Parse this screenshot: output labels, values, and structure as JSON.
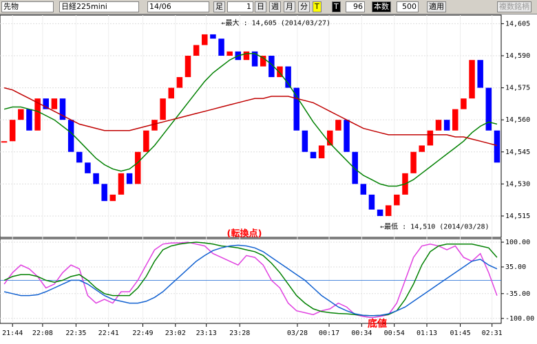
{
  "toolbar": {
    "market": "先物",
    "symbol": "日経225mini",
    "month": "14/06",
    "bar_label": "足",
    "bar_value": "1",
    "day": "日",
    "week": "週",
    "month_btn": "月",
    "minute": "分",
    "t1": "T",
    "t2": "T",
    "count": "96",
    "count_label": "本数",
    "count2": "500",
    "apply": "適用",
    "multi": "複数銘柄"
  },
  "chart_data": [
    {
      "type": "candlestick",
      "x": [
        0,
        1,
        2,
        3,
        4,
        5,
        6,
        7,
        8,
        9,
        10,
        11,
        12,
        13,
        14,
        15,
        16,
        17,
        18,
        19,
        20,
        21,
        22,
        23,
        24,
        25,
        26,
        27,
        28,
        29,
        30,
        31,
        32,
        33,
        34,
        35,
        36,
        37,
        38,
        39,
        40,
        41,
        42,
        43,
        44,
        45,
        46,
        47,
        48,
        49,
        50,
        51,
        52,
        53,
        54,
        55,
        56,
        57,
        58,
        59
      ],
      "xlim": [
        -0.5,
        59.5
      ],
      "xticks": [
        {
          "value": 1,
          "label": "21:44"
        },
        {
          "value": 4.6,
          "label": "22:08"
        },
        {
          "value": 8.6,
          "label": "22:35"
        },
        {
          "value": 12.5,
          "label": "22:41"
        },
        {
          "value": 16.6,
          "label": "22:49"
        },
        {
          "value": 20.5,
          "label": "23:02"
        },
        {
          "value": 24.2,
          "label": "23:13"
        },
        {
          "value": 28.2,
          "label": "23:28"
        },
        {
          "value": 35.1,
          "label": "03/28"
        },
        {
          "value": 38.9,
          "label": "00:17"
        },
        {
          "value": 42.8,
          "label": "00:34"
        },
        {
          "value": 46.7,
          "label": "00:54"
        },
        {
          "value": 50.6,
          "label": "01:13"
        },
        {
          "value": 54.6,
          "label": "01:45"
        },
        {
          "value": 58.4,
          "label": "02:31"
        }
      ],
      "ylim": [
        14505,
        14609
      ],
      "yticks": [
        {
          "value": 14515,
          "label": "14,515"
        },
        {
          "value": 14530,
          "label": "14,530"
        },
        {
          "value": 14545,
          "label": "14,545"
        },
        {
          "value": 14560,
          "label": "14,560"
        },
        {
          "value": 14575,
          "label": "14,575"
        },
        {
          "value": 14590,
          "label": "14,590"
        },
        {
          "value": 14605,
          "label": "14,605"
        }
      ],
      "up_color": "#ff0000",
      "down_color": "#0000ff",
      "series": [
        {
          "values": [
            14550,
            14560,
            14565,
            14555,
            14570,
            14565,
            14570,
            14560,
            14545,
            14540,
            14535,
            14530,
            14522,
            14525,
            14535,
            14530,
            14545,
            14555,
            14560,
            14570,
            14575,
            14580,
            14590,
            14595,
            14600,
            14598,
            14590,
            14592,
            14588,
            14592,
            14585,
            14590,
            14580,
            14585,
            14575,
            14555,
            14545,
            14542,
            14548,
            14555,
            14560,
            14545,
            14530,
            14525,
            14518,
            14515,
            14520,
            14525,
            14535,
            14545,
            14548,
            14555,
            14560,
            14555,
            14565,
            14570,
            14588,
            14575,
            14555,
            14540
          ]
        },
        {
          "color": "#008000",
          "values": [
            14565,
            14566,
            14566,
            14565,
            14564,
            14562,
            14560,
            14557,
            14554,
            14550,
            14546,
            14542,
            14539,
            14537,
            14536,
            14537,
            14540,
            14544,
            14548,
            14553,
            14558,
            14563,
            14568,
            14573,
            14578,
            14582,
            14585,
            14588,
            14590,
            14591,
            14591,
            14589,
            14586,
            14582,
            14577,
            14571,
            14565,
            14559,
            14554,
            14549,
            14545,
            14541,
            14537,
            14534,
            14532,
            14530,
            14529,
            14529,
            14530,
            14532,
            14535,
            14538,
            14541,
            14544,
            14547,
            14550,
            14554,
            14557,
            14559,
            14558
          ]
        },
        {
          "color": "#c00000",
          "values": [
            14575,
            14574,
            14572,
            14570,
            14568,
            14566,
            14564,
            14562,
            14560,
            14558,
            14557,
            14556,
            14555,
            14555,
            14555,
            14555,
            14556,
            14557,
            14558,
            14559,
            14560,
            14561,
            14562,
            14563,
            14564,
            14565,
            14566,
            14567,
            14568,
            14569,
            14570,
            14570,
            14571,
            14571,
            14571,
            14570,
            14569,
            14568,
            14566,
            14564,
            14562,
            14560,
            14558,
            14556,
            14555,
            14554,
            14553,
            14553,
            14553,
            14553,
            14553,
            14553,
            14553,
            14553,
            14552,
            14552,
            14551,
            14550,
            14549,
            14548
          ]
        }
      ],
      "annotations": [
        {
          "text": "←最大 : 14,605 (2014/03/27)",
          "x": 26,
          "y": 14605
        },
        {
          "text": "←最低 : 14,510 (2014/03/28)",
          "x": 45,
          "y": 14510
        }
      ]
    },
    {
      "type": "line",
      "title": "(転換点)",
      "subtitle": "底値",
      "x": [
        0,
        1,
        2,
        3,
        4,
        5,
        6,
        7,
        8,
        9,
        10,
        11,
        12,
        13,
        14,
        15,
        16,
        17,
        18,
        19,
        20,
        21,
        22,
        23,
        24,
        25,
        26,
        27,
        28,
        29,
        30,
        31,
        32,
        33,
        34,
        35,
        36,
        37,
        38,
        39,
        40,
        41,
        42,
        43,
        44,
        45,
        46,
        47,
        48,
        49,
        50,
        51,
        52,
        53,
        54,
        55,
        56,
        57,
        58,
        59
      ],
      "xlim": [
        -0.5,
        59.5
      ],
      "ylim": [
        -113,
        109
      ],
      "yticks": [
        {
          "value": 100,
          "label": "100.00"
        },
        {
          "value": 35,
          "label": "35.00"
        },
        {
          "value": -35,
          "label": "-35.00"
        },
        {
          "value": -100,
          "label": "-100.00"
        }
      ],
      "reference_line": 0,
      "series": [
        {
          "color": "#e040e0",
          "values": [
            -10,
            20,
            40,
            30,
            10,
            -20,
            -10,
            20,
            40,
            30,
            -40,
            -60,
            -50,
            -60,
            -30,
            -30,
            0,
            40,
            80,
            95,
            98,
            98,
            100,
            95,
            90,
            70,
            60,
            50,
            40,
            65,
            60,
            40,
            0,
            -20,
            -60,
            -80,
            -85,
            -90,
            -80,
            -75,
            -60,
            -70,
            -90,
            -95,
            -98,
            -95,
            -90,
            -60,
            0,
            60,
            90,
            95,
            90,
            80,
            90,
            60,
            50,
            70,
            20,
            -40
          ]
        },
        {
          "color": "#008000",
          "values": [
            0,
            10,
            15,
            15,
            10,
            0,
            -5,
            0,
            10,
            15,
            0,
            -20,
            -35,
            -40,
            -40,
            -40,
            -20,
            10,
            50,
            80,
            90,
            95,
            98,
            100,
            98,
            95,
            90,
            88,
            85,
            80,
            75,
            65,
            45,
            20,
            -10,
            -40,
            -60,
            -75,
            -82,
            -85,
            -87,
            -88,
            -90,
            -92,
            -93,
            -92,
            -90,
            -80,
            -50,
            -10,
            40,
            75,
            90,
            95,
            95,
            95,
            95,
            90,
            85,
            60
          ]
        },
        {
          "color": "#1060d0",
          "values": [
            -30,
            -35,
            -40,
            -40,
            -38,
            -30,
            -20,
            -10,
            0,
            0,
            -10,
            -25,
            -40,
            -50,
            -55,
            -60,
            -60,
            -55,
            -45,
            -30,
            -10,
            10,
            30,
            50,
            65,
            78,
            85,
            90,
            92,
            90,
            85,
            75,
            60,
            45,
            30,
            15,
            0,
            -20,
            -40,
            -55,
            -70,
            -80,
            -88,
            -92,
            -93,
            -92,
            -88,
            -80,
            -70,
            -55,
            -40,
            -25,
            -10,
            5,
            20,
            35,
            50,
            55,
            40,
            30
          ]
        }
      ]
    }
  ]
}
